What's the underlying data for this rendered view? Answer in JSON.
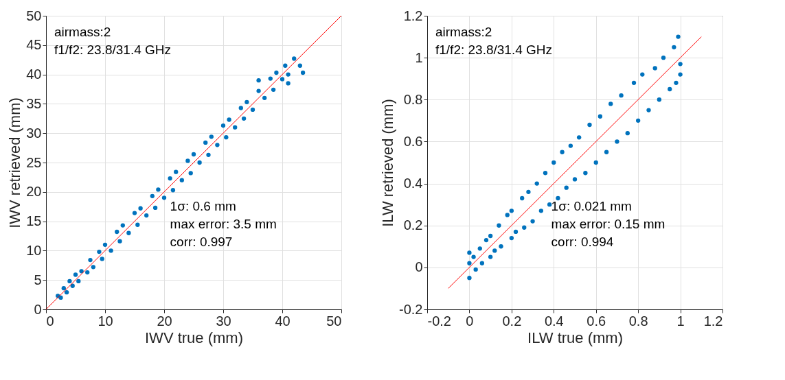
{
  "chart_data": [
    {
      "type": "scatter",
      "xlabel": "IWV true (mm)",
      "ylabel": "IWV retrieved (mm)",
      "xlim": [
        0,
        50
      ],
      "ylim": [
        0,
        50
      ],
      "xticks": [
        0,
        10,
        20,
        30,
        40,
        50
      ],
      "yticks": [
        0,
        5,
        10,
        15,
        20,
        25,
        30,
        35,
        40,
        45,
        50
      ],
      "grid": true,
      "annotations": [
        "airmass:2",
        "f1/f2: 23.8/31.4 GHz",
        "1σ: 0.6 mm",
        "max error: 3.5 mm",
        "corr: 0.997"
      ],
      "series": [
        {
          "marker": "circle",
          "color": "#0072bd",
          "x": [
            2,
            2.5,
            3,
            3.5,
            4,
            4.5,
            5,
            5.5,
            6,
            7,
            7.5,
            8,
            9,
            9.5,
            10,
            11,
            12,
            12.5,
            13,
            14,
            15,
            15.5,
            16,
            17,
            18,
            18.5,
            19,
            20,
            21,
            21.5,
            22,
            23,
            24,
            24.5,
            25,
            26,
            27,
            27.5,
            28,
            29,
            30,
            30.5,
            31,
            32,
            33,
            33.5,
            34,
            35,
            36,
            37,
            38,
            38.5,
            39,
            40,
            40.5,
            41,
            42,
            43,
            43.5,
            36,
            41
          ],
          "values": [
            2.3,
            2,
            3.6,
            2.9,
            4.8,
            4,
            5.9,
            4.8,
            6.5,
            6.3,
            8.4,
            7.2,
            9.8,
            8.6,
            11,
            10,
            13.2,
            11.6,
            14.3,
            13,
            16.4,
            14.4,
            17.2,
            16,
            19.3,
            17.3,
            20.4,
            19,
            22.3,
            20.3,
            23.4,
            22,
            25.3,
            23.2,
            26.4,
            25,
            28.4,
            26.3,
            29.4,
            28,
            31.3,
            29.3,
            32.3,
            31,
            34.3,
            32.5,
            35.3,
            34,
            37.2,
            36,
            39.3,
            37.4,
            40.3,
            39.2,
            41.5,
            40,
            42.7,
            41.5,
            40.3,
            39,
            38.5
          ]
        },
        {
          "type": "line",
          "color": "#ff0000",
          "x": [
            0,
            50
          ],
          "values": [
            0,
            50
          ]
        }
      ]
    },
    {
      "type": "scatter",
      "xlabel": "ILW true (mm)",
      "ylabel": "ILW retrieved (mm)",
      "xlim": [
        -0.2,
        1.2
      ],
      "ylim": [
        -0.2,
        1.2
      ],
      "xticks": [
        -0.2,
        0,
        0.2,
        0.4,
        0.6,
        0.8,
        1,
        1.2
      ],
      "yticks": [
        -0.2,
        0,
        0.2,
        0.4,
        0.6,
        0.8,
        1,
        1.2
      ],
      "grid": true,
      "annotations": [
        "airmass:2",
        "f1/f2: 23.8/31.4 GHz",
        "1σ: 0.021 mm",
        "max error: 0.15 mm",
        "corr: 0.994"
      ],
      "series": [
        {
          "marker": "circle",
          "color": "#0072bd",
          "x": [
            0,
            0,
            0,
            0.02,
            0.03,
            0.05,
            0.06,
            0.08,
            0.1,
            0.1,
            0.12,
            0.14,
            0.15,
            0.18,
            0.2,
            0.2,
            0.22,
            0.25,
            0.26,
            0.28,
            0.3,
            0.32,
            0.34,
            0.36,
            0.38,
            0.4,
            0.42,
            0.44,
            0.46,
            0.48,
            0.5,
            0.52,
            0.55,
            0.57,
            0.6,
            0.62,
            0.65,
            0.67,
            0.7,
            0.72,
            0.75,
            0.78,
            0.8,
            0.82,
            0.85,
            0.88,
            0.9,
            0.92,
            0.95,
            0.97,
            0.98,
            0.99,
            1,
            1
          ],
          "values": [
            -0.05,
            0.07,
            0.02,
            0.05,
            -0.01,
            0.09,
            0.02,
            0.13,
            0.05,
            0.15,
            0.08,
            0.2,
            0.1,
            0.25,
            0.14,
            0.27,
            0.17,
            0.33,
            0.19,
            0.36,
            0.22,
            0.4,
            0.27,
            0.45,
            0.3,
            0.5,
            0.33,
            0.55,
            0.38,
            0.58,
            0.42,
            0.62,
            0.45,
            0.68,
            0.5,
            0.72,
            0.55,
            0.78,
            0.6,
            0.82,
            0.64,
            0.88,
            0.7,
            0.92,
            0.75,
            0.95,
            0.8,
            1,
            0.85,
            1.05,
            0.88,
            1.1,
            0.92,
            0.97
          ]
        },
        {
          "type": "line",
          "color": "#ff0000",
          "x": [
            -0.1,
            1.1
          ],
          "values": [
            -0.1,
            1.1
          ]
        }
      ]
    }
  ]
}
